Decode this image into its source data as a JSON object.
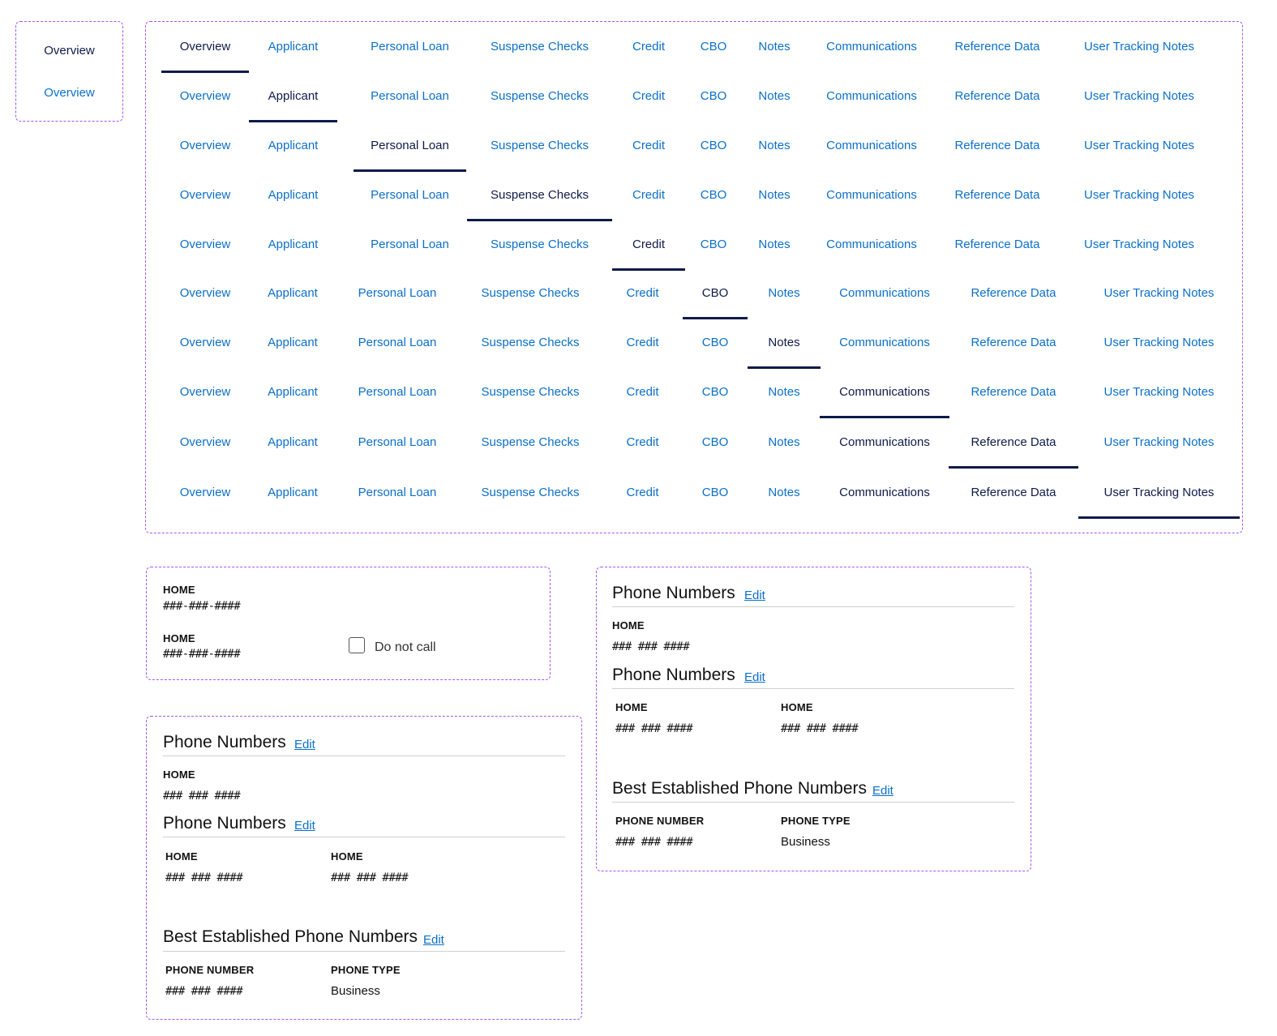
{
  "overview_box": {
    "active_label": "Overview",
    "link_label": "Overview"
  },
  "tabs": {
    "labels": [
      "Overview",
      "Applicant",
      "Personal Loan",
      "Suspense Checks",
      "Credit",
      "CBO",
      "Notes",
      "Communications",
      "Reference Data",
      "User Tracking Notes"
    ],
    "active_index_per_row": [
      0,
      1,
      2,
      3,
      4,
      5,
      6,
      7,
      8,
      9
    ]
  },
  "phone_box_1": {
    "row1": {
      "label": "HOME",
      "value": "###-###-####"
    },
    "row2": {
      "label": "HOME",
      "value": "###-###-####"
    },
    "do_not_call": {
      "label": "Do not call",
      "checked": false
    }
  },
  "phone_box_2": {
    "section1": {
      "title": "Phone Numbers",
      "edit": "Edit",
      "label": "HOME",
      "value": "### ### ####"
    },
    "section2": {
      "title": "Phone Numbers",
      "edit": "Edit",
      "col1": {
        "label": "HOME",
        "value": "### ### ####"
      },
      "col2": {
        "label": "HOME",
        "value": "### ### ####"
      }
    },
    "section3": {
      "title": "Best Established Phone Numbers",
      "edit": "Edit",
      "col1": {
        "label": "PHONE NUMBER",
        "value": "### ### ####"
      },
      "col2": {
        "label": "PHONE TYPE",
        "value": "Business"
      }
    }
  },
  "phone_box_3": {
    "section1": {
      "title": "Phone Numbers",
      "edit": "Edit",
      "label": "HOME",
      "value": "### ### ####"
    },
    "section2": {
      "title": "Phone Numbers",
      "edit": "Edit",
      "col1": {
        "label": "HOME",
        "value": "### ### ####"
      },
      "col2": {
        "label": "HOME",
        "value": "### ### ####"
      }
    },
    "section3": {
      "title": "Best Established Phone Numbers",
      "edit": "Edit",
      "col1": {
        "label": "PHONE NUMBER",
        "value": "### ### ####"
      },
      "col2": {
        "label": "PHONE TYPE",
        "value": "Business"
      }
    }
  }
}
